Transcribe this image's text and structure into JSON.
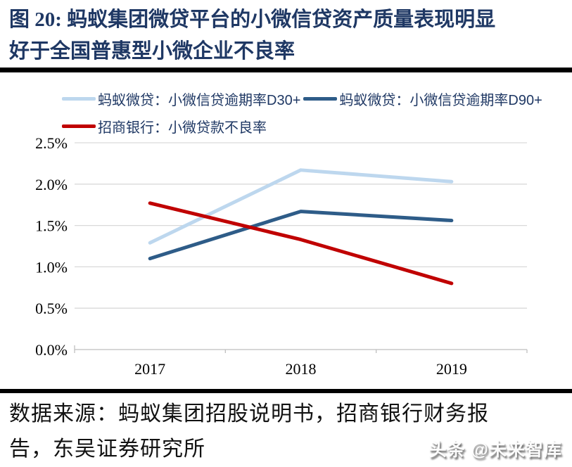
{
  "figure": {
    "title_lines": [
      "图 20: 蚂蚁集团微贷平台的小微信贷资产质量表现明显",
      "好于全国普惠型小微企业不良率"
    ],
    "title_color": "#1F3864"
  },
  "chart_data": {
    "type": "line",
    "categories": [
      "2017",
      "2018",
      "2019"
    ],
    "series": [
      {
        "name": "蚂蚁微贷：小微信贷逾期率D30+",
        "color": "#BDD7EE",
        "values": [
          1.29,
          2.17,
          2.03
        ]
      },
      {
        "name": "蚂蚁微贷：小微信贷逾期率D90+",
        "color": "#2E5C88",
        "values": [
          1.1,
          1.67,
          1.56
        ]
      },
      {
        "name": "招商银行：小微贷款不良率",
        "color": "#C00000",
        "values": [
          1.77,
          1.33,
          0.8
        ]
      }
    ],
    "ylim": [
      0,
      2.5
    ],
    "yticks": [
      0,
      0.5,
      1.0,
      1.5,
      2.0,
      2.5
    ],
    "ytick_labels": [
      "0.0%",
      "0.5%",
      "1.0%",
      "1.5%",
      "2.0%",
      "2.5%"
    ],
    "grid": true,
    "legend_position": "top",
    "gridline_color": "#D9D9D9",
    "axis_color": "#BFBFBF",
    "line_width": 5
  },
  "source": {
    "lines": [
      "数据来源：蚂蚁集团招股说明书，招商银行财务报",
      "告，东吴证券研究所"
    ]
  },
  "watermark": {
    "text": "头条 @未来智库"
  }
}
